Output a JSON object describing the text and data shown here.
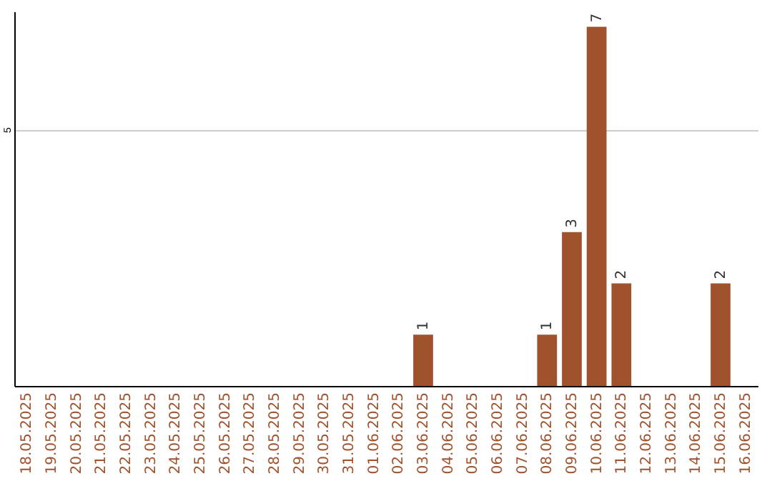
{
  "chart_data": {
    "type": "bar",
    "categories": [
      "18.05.2025",
      "19.05.2025",
      "20.05.2025",
      "21.05.2025",
      "22.05.2025",
      "23.05.2025",
      "24.05.2025",
      "25.05.2025",
      "26.05.2025",
      "27.05.2025",
      "28.05.2025",
      "29.05.2025",
      "30.05.2025",
      "31.05.2025",
      "01.06.2025",
      "02.06.2025",
      "03.06.2025",
      "04.06.2025",
      "05.06.2025",
      "06.06.2025",
      "07.06.2025",
      "08.06.2025",
      "09.06.2025",
      "10.06.2025",
      "11.06.2025",
      "12.06.2025",
      "13.06.2025",
      "14.06.2025",
      "15.06.2025",
      "16.06.2025"
    ],
    "values": [
      null,
      null,
      null,
      null,
      null,
      null,
      null,
      null,
      null,
      null,
      null,
      null,
      null,
      null,
      null,
      null,
      1,
      null,
      null,
      null,
      null,
      1,
      3,
      7,
      2,
      null,
      null,
      null,
      2,
      null
    ],
    "data_labels": true,
    "color": "#a0522d",
    "ylim": [
      0,
      7.3
    ],
    "yticks": [
      5
    ],
    "grid": "y"
  }
}
